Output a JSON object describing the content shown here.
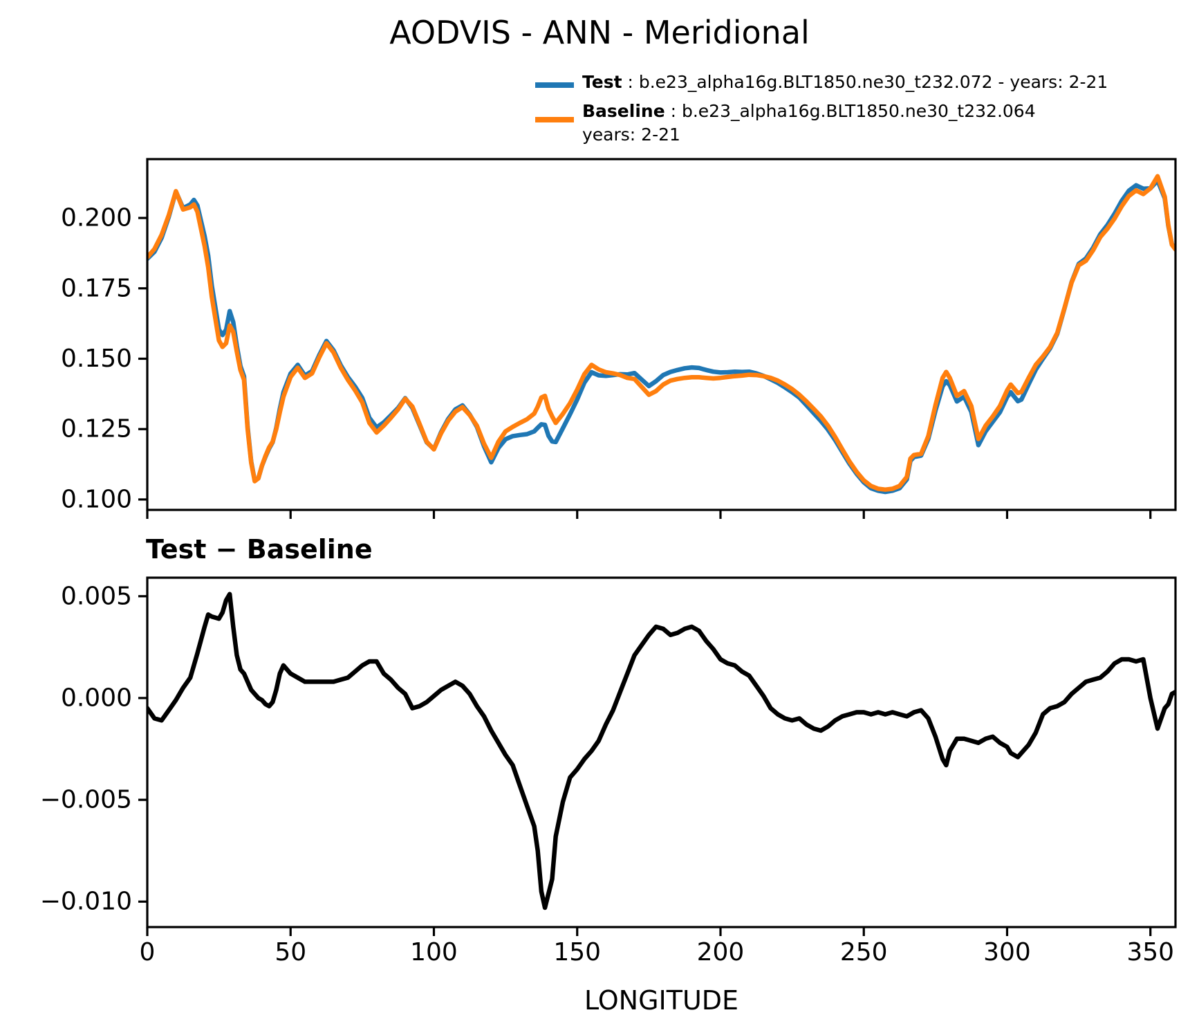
{
  "title": "AODVIS - ANN - Meridional",
  "legend": {
    "test_label": "Test",
    "test_desc": " : b.e23_alpha16g.BLT1850.ne30_t232.072 - years: 2-21",
    "baseline_label": "Baseline",
    "baseline_desc": " : b.e23_alpha16g.BLT1850.ne30_t232.064",
    "baseline_desc2": "years: 2-21",
    "test_color": "#1f77b4",
    "baseline_color": "#ff7f0e"
  },
  "diff_title": "Test − Baseline",
  "xlabel": "LONGITUDE",
  "chart_data": [
    {
      "type": "line",
      "title": "AODVIS - ANN - Meridional",
      "xlabel": "",
      "ylabel": "",
      "xlim": [
        0,
        358.75
      ],
      "ylim": [
        0.0963,
        0.2209
      ],
      "grid": false,
      "legend_position": "upper right above axes",
      "xticks": [
        0,
        50,
        100,
        150,
        200,
        250,
        300,
        350
      ],
      "xtick_labels": [],
      "yticks": [
        0.1,
        0.125,
        0.15,
        0.175,
        0.2
      ],
      "ytick_labels": [
        "0.100",
        "0.125",
        "0.150",
        "0.175",
        "0.200"
      ],
      "x": [
        0,
        2.5,
        5,
        7.5,
        10,
        12.5,
        15,
        16.25,
        17.5,
        20,
        21.25,
        22.5,
        25,
        26.25,
        27.5,
        28.75,
        30,
        31.25,
        32.5,
        33.75,
        35,
        36.25,
        37.5,
        38.75,
        40,
        41.25,
        42.5,
        43.75,
        45,
        46.25,
        47.5,
        50,
        52.5,
        55,
        57.5,
        60,
        62.5,
        65,
        67.5,
        70,
        72.5,
        75,
        77.5,
        80,
        82.5,
        85,
        87.5,
        90,
        92.5,
        95,
        97.5,
        100,
        102.5,
        105,
        107.5,
        110,
        112.5,
        115,
        117.5,
        120,
        122.5,
        125,
        127.5,
        130,
        132.5,
        135,
        136.25,
        137.5,
        138.75,
        140,
        141.25,
        142.5,
        145,
        147.5,
        150,
        152.5,
        155,
        157.5,
        160,
        162.5,
        165,
        167.5,
        170,
        172.5,
        175,
        177.5,
        180,
        182.5,
        185,
        187.5,
        190,
        192.5,
        195,
        197.5,
        200,
        202.5,
        205,
        207.5,
        210,
        212.5,
        215,
        217.5,
        220,
        222.5,
        225,
        227.5,
        230,
        232.5,
        235,
        237.5,
        240,
        242.5,
        245,
        247.5,
        250,
        252.5,
        255,
        257.5,
        260,
        262.5,
        265,
        266.25,
        267.5,
        270,
        272.5,
        275,
        277.5,
        278.75,
        280,
        282.5,
        285,
        287.5,
        290,
        292.5,
        295,
        297.5,
        300,
        301.25,
        303.75,
        305,
        307.5,
        310,
        312.5,
        315,
        317.5,
        320,
        322.5,
        325,
        327.5,
        330,
        332.5,
        335,
        337.5,
        340,
        342.5,
        345,
        347.5,
        350,
        352.5,
        355,
        356.25,
        357.5,
        358.75
      ],
      "series": [
        {
          "name": "Test",
          "color": "#1f77b4",
          "values": [
            0.1855,
            0.188,
            0.1929,
            0.2004,
            0.2094,
            0.2035,
            0.2048,
            0.2064,
            0.2044,
            0.1935,
            0.1866,
            0.176,
            0.1604,
            0.1584,
            0.1603,
            0.1669,
            0.163,
            0.1546,
            0.1474,
            0.1437,
            0.1258,
            0.1134,
            0.1067,
            0.1075,
            0.1119,
            0.1152,
            0.1181,
            0.1203,
            0.1254,
            0.1322,
            0.1381,
            0.1447,
            0.1478,
            0.144,
            0.1456,
            0.1513,
            0.1563,
            0.153,
            0.1477,
            0.1435,
            0.1401,
            0.1361,
            0.129,
            0.1256,
            0.1274,
            0.1299,
            0.1325,
            0.136,
            0.1325,
            0.1264,
            0.1203,
            0.1179,
            0.1239,
            0.1286,
            0.132,
            0.1334,
            0.1302,
            0.1258,
            0.1189,
            0.1132,
            0.1183,
            0.1214,
            0.1225,
            0.1229,
            0.1232,
            0.1242,
            0.1255,
            0.1267,
            0.1265,
            0.1226,
            0.1206,
            0.1204,
            0.1253,
            0.1303,
            0.1355,
            0.1415,
            0.1452,
            0.1441,
            0.1439,
            0.1442,
            0.1445,
            0.1444,
            0.1449,
            0.1426,
            0.1403,
            0.142,
            0.1442,
            0.1453,
            0.146,
            0.1466,
            0.1469,
            0.1467,
            0.146,
            0.1454,
            0.1451,
            0.1452,
            0.1454,
            0.1453,
            0.1454,
            0.1448,
            0.1439,
            0.1427,
            0.1414,
            0.1398,
            0.1381,
            0.1362,
            0.1335,
            0.1307,
            0.1279,
            0.1248,
            0.1211,
            0.1169,
            0.1127,
            0.1091,
            0.1061,
            0.104,
            0.1031,
            0.1027,
            0.1031,
            0.104,
            0.1071,
            0.1137,
            0.1151,
            0.1156,
            0.1215,
            0.1316,
            0.1402,
            0.142,
            0.1406,
            0.1348,
            0.1365,
            0.1311,
            0.1193,
            0.1242,
            0.1276,
            0.131,
            0.1364,
            0.1381,
            0.1349,
            0.1355,
            0.1409,
            0.1461,
            0.15,
            0.1537,
            0.1588,
            0.1678,
            0.1772,
            0.1837,
            0.1856,
            0.1894,
            0.1942,
            0.1975,
            0.2015,
            0.2061,
            0.2097,
            0.2116,
            0.2104,
            0.2105,
            0.2133,
            0.207,
            0.1972,
            0.1907,
            0.1891
          ]
        },
        {
          "name": "Baseline",
          "color": "#ff7f0e",
          "values": [
            0.186,
            0.189,
            0.194,
            0.201,
            0.2095,
            0.203,
            0.2038,
            0.2048,
            0.2022,
            0.19,
            0.1825,
            0.172,
            0.1565,
            0.1542,
            0.1555,
            0.1618,
            0.1595,
            0.1525,
            0.146,
            0.1425,
            0.125,
            0.113,
            0.1065,
            0.1075,
            0.112,
            0.1155,
            0.1185,
            0.1205,
            0.125,
            0.131,
            0.1365,
            0.1435,
            0.1468,
            0.1432,
            0.1448,
            0.1505,
            0.1555,
            0.1522,
            0.1468,
            0.1425,
            0.1388,
            0.1345,
            0.1272,
            0.1238,
            0.1262,
            0.129,
            0.132,
            0.1358,
            0.133,
            0.1268,
            0.1205,
            0.1178,
            0.1235,
            0.128,
            0.1312,
            0.1328,
            0.13,
            0.1262,
            0.1198,
            0.1148,
            0.1205,
            0.1242,
            0.1258,
            0.1272,
            0.1285,
            0.1305,
            0.133,
            0.1362,
            0.1368,
            0.1322,
            0.1295,
            0.1272,
            0.1304,
            0.1342,
            0.139,
            0.1445,
            0.1478,
            0.1462,
            0.1452,
            0.1448,
            0.1442,
            0.1432,
            0.1428,
            0.14,
            0.1372,
            0.1385,
            0.1408,
            0.1422,
            0.1428,
            0.1432,
            0.1434,
            0.1434,
            0.1432,
            0.143,
            0.1432,
            0.1435,
            0.1438,
            0.144,
            0.1443,
            0.1442,
            0.1438,
            0.1432,
            0.1422,
            0.1408,
            0.1392,
            0.1372,
            0.1348,
            0.1322,
            0.1295,
            0.1262,
            0.1222,
            0.1178,
            0.1135,
            0.1098,
            0.1068,
            0.1048,
            0.1038,
            0.1035,
            0.1038,
            0.1048,
            0.108,
            0.1145,
            0.1158,
            0.1162,
            0.1225,
            0.1335,
            0.1432,
            0.1453,
            0.1432,
            0.1368,
            0.1385,
            0.1332,
            0.1215,
            0.1262,
            0.1295,
            0.1332,
            0.1388,
            0.1408,
            0.1378,
            0.1382,
            0.1432,
            0.1478,
            0.1508,
            0.1542,
            0.1592,
            0.168,
            0.177,
            0.1832,
            0.1848,
            0.1885,
            0.1932,
            0.1962,
            0.1998,
            0.2042,
            0.2078,
            0.2098,
            0.2085,
            0.2105,
            0.2148,
            0.2075,
            0.1975,
            0.1905,
            0.1888
          ]
        }
      ]
    },
    {
      "type": "line",
      "title": "Test − Baseline",
      "xlabel": "LONGITUDE",
      "ylabel": "",
      "xlim": [
        0,
        358.75
      ],
      "ylim": [
        -0.01125,
        0.00591
      ],
      "grid": false,
      "xticks": [
        0,
        50,
        100,
        150,
        200,
        250,
        300,
        350
      ],
      "xtick_labels": [
        "0",
        "50",
        "100",
        "150",
        "200",
        "250",
        "300",
        "350"
      ],
      "yticks": [
        0.005,
        0.0,
        -0.005,
        -0.01
      ],
      "ytick_labels": [
        "0.005",
        "0.000",
        "−0.005",
        "−0.010"
      ],
      "x": [
        0,
        2.5,
        5,
        7.5,
        10,
        12.5,
        15,
        16.25,
        17.5,
        20,
        21.25,
        22.5,
        25,
        26.25,
        27.5,
        28.75,
        30,
        31.25,
        32.5,
        33.75,
        35,
        36.25,
        37.5,
        38.75,
        40,
        41.25,
        42.5,
        43.75,
        45,
        46.25,
        47.5,
        50,
        52.5,
        55,
        57.5,
        60,
        62.5,
        65,
        67.5,
        70,
        72.5,
        75,
        77.5,
        80,
        82.5,
        85,
        87.5,
        90,
        92.5,
        95,
        97.5,
        100,
        102.5,
        105,
        107.5,
        110,
        112.5,
        115,
        117.5,
        120,
        122.5,
        125,
        127.5,
        130,
        132.5,
        135,
        136.25,
        137.5,
        138.75,
        140,
        141.25,
        142.5,
        145,
        147.5,
        150,
        152.5,
        155,
        157.5,
        160,
        162.5,
        165,
        167.5,
        170,
        172.5,
        175,
        177.5,
        180,
        182.5,
        185,
        187.5,
        190,
        192.5,
        195,
        197.5,
        200,
        202.5,
        205,
        207.5,
        210,
        212.5,
        215,
        217.5,
        220,
        222.5,
        225,
        227.5,
        230,
        232.5,
        235,
        237.5,
        240,
        242.5,
        245,
        247.5,
        250,
        252.5,
        255,
        257.5,
        260,
        262.5,
        265,
        266.25,
        267.5,
        270,
        272.5,
        275,
        277.5,
        278.75,
        280,
        282.5,
        285,
        287.5,
        290,
        292.5,
        295,
        297.5,
        300,
        301.25,
        303.75,
        305,
        307.5,
        310,
        312.5,
        315,
        317.5,
        320,
        322.5,
        325,
        327.5,
        330,
        332.5,
        335,
        337.5,
        340,
        342.5,
        345,
        347.5,
        350,
        352.5,
        355,
        356.25,
        357.5,
        358.75
      ],
      "series": [
        {
          "name": "Test − Baseline",
          "color": "#000000",
          "values": [
            -0.0005,
            -0.001,
            -0.0011,
            -0.0006,
            -0.0001,
            0.0005,
            0.001,
            0.0016,
            0.0022,
            0.0035,
            0.0041,
            0.004,
            0.0039,
            0.0042,
            0.0048,
            0.0051,
            0.0035,
            0.0021,
            0.0014,
            0.0012,
            0.0008,
            0.0004,
            0.0002,
            0.0,
            -0.0001,
            -0.0003,
            -0.0004,
            -0.0002,
            0.0004,
            0.0012,
            0.0016,
            0.0012,
            0.001,
            0.0008,
            0.0008,
            0.0008,
            0.0008,
            0.0008,
            0.0009,
            0.001,
            0.0013,
            0.0016,
            0.0018,
            0.0018,
            0.0012,
            0.0009,
            0.0005,
            0.0002,
            -0.0005,
            -0.0004,
            -0.0002,
            0.0001,
            0.0004,
            0.0006,
            0.0008,
            0.0006,
            0.0002,
            -0.0004,
            -0.0009,
            -0.0016,
            -0.0022,
            -0.0028,
            -0.0033,
            -0.0043,
            -0.0053,
            -0.0063,
            -0.0075,
            -0.0095,
            -0.0103,
            -0.0096,
            -0.0089,
            -0.0068,
            -0.0051,
            -0.0039,
            -0.0035,
            -0.003,
            -0.0026,
            -0.0021,
            -0.0013,
            -0.0006,
            0.0003,
            0.0012,
            0.0021,
            0.0026,
            0.0031,
            0.0035,
            0.0034,
            0.0031,
            0.0032,
            0.0034,
            0.0035,
            0.0033,
            0.0028,
            0.0024,
            0.0019,
            0.0017,
            0.0016,
            0.0013,
            0.0011,
            0.0006,
            0.0001,
            -0.0005,
            -0.0008,
            -0.001,
            -0.0011,
            -0.001,
            -0.0013,
            -0.0015,
            -0.0016,
            -0.0014,
            -0.0011,
            -0.0009,
            -0.0008,
            -0.0007,
            -0.0007,
            -0.0008,
            -0.0007,
            -0.0008,
            -0.0007,
            -0.0008,
            -0.0009,
            -0.0008,
            -0.0007,
            -0.0006,
            -0.001,
            -0.0019,
            -0.003,
            -0.0033,
            -0.0026,
            -0.002,
            -0.002,
            -0.0021,
            -0.0022,
            -0.002,
            -0.0019,
            -0.0022,
            -0.0024,
            -0.0027,
            -0.0029,
            -0.0027,
            -0.0023,
            -0.0017,
            -0.0008,
            -0.0005,
            -0.0004,
            -0.0002,
            0.0002,
            0.0005,
            0.0008,
            0.0009,
            0.001,
            0.0013,
            0.0017,
            0.0019,
            0.0019,
            0.0018,
            0.0019,
            0.0,
            -0.0015,
            -0.0005,
            -0.0003,
            0.0002,
            0.0003
          ]
        }
      ]
    }
  ]
}
